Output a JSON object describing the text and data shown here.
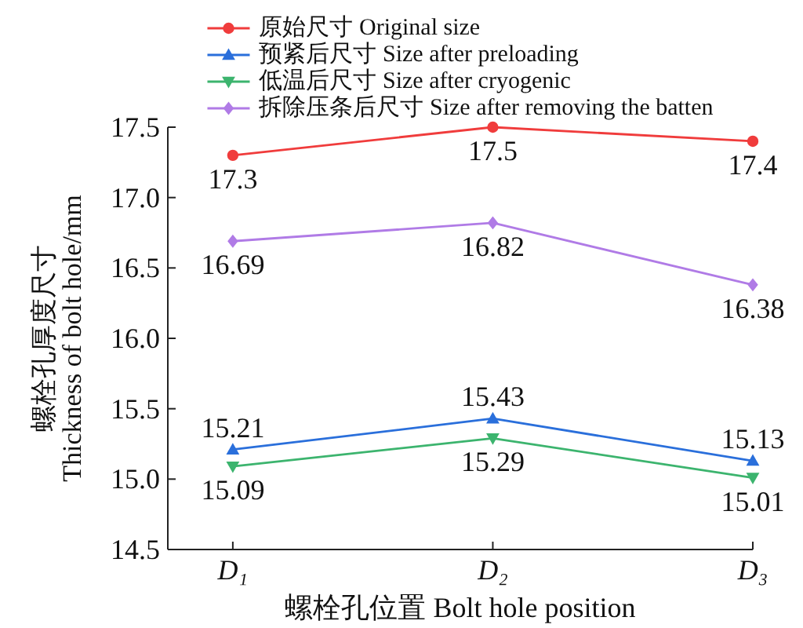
{
  "chart_data": {
    "type": "line",
    "xlabel": "螺栓孔位置 Bolt hole position",
    "ylabel": "螺栓孔厚度尺寸\nThickness of bolt hole/mm",
    "categories": [
      "D₁",
      "D₂",
      "D₃"
    ],
    "series": [
      {
        "name": "原始尺寸 Original size",
        "color": "#f03c3c",
        "marker": "circle",
        "values": [
          17.3,
          17.5,
          17.4
        ]
      },
      {
        "name": "预紧后尺寸 Size after preloading",
        "color": "#2a6fdb",
        "marker": "triangle",
        "values": [
          15.21,
          15.43,
          15.13
        ]
      },
      {
        "name": "低温后尺寸 Size after cryogenic",
        "color": "#3cb46e",
        "marker": "triangle-down",
        "values": [
          15.09,
          15.29,
          15.01
        ]
      },
      {
        "name": "拆除压条后尺寸 Size after removing the batten",
        "color": "#b07be6",
        "marker": "diamond",
        "values": [
          16.69,
          16.82,
          16.38
        ]
      }
    ],
    "ylim": [
      14.5,
      17.5
    ],
    "yticks": [
      14.5,
      {
        "value": 15,
        "label": "15.0"
      },
      15.5,
      {
        "value": 16,
        "label": "16.0"
      },
      16.5,
      {
        "value": 17,
        "label": "17.0"
      },
      17.5
    ],
    "data_labels": true,
    "legend": "top",
    "line_style": "solid"
  }
}
